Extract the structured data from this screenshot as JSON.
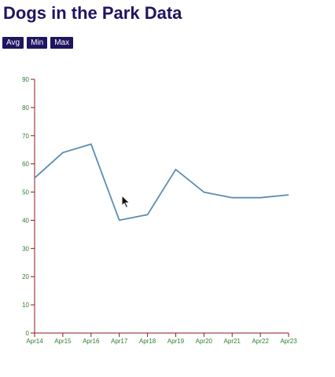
{
  "header": {
    "title": "Dogs in the Park Data"
  },
  "controls": {
    "avg_label": "Avg",
    "min_label": "Min",
    "max_label": "Max"
  },
  "colors": {
    "title": "#1f1560",
    "button_bg": "#1f1560",
    "line": "#5b8db5",
    "axis": "#8b1a1a",
    "tick_text": "#2e7d32"
  },
  "chart_data": {
    "type": "line",
    "title": "",
    "xlabel": "",
    "ylabel": "",
    "categories": [
      "Apr14",
      "Apr15",
      "Apr16",
      "Apr17",
      "Apr18",
      "Apr19",
      "Apr20",
      "Apr21",
      "Apr22",
      "Apr23"
    ],
    "series": [
      {
        "values": [
          55,
          64,
          67,
          40,
          42,
          58,
          50,
          48,
          48,
          49
        ]
      }
    ],
    "ylim": [
      0,
      90
    ],
    "yticks": [
      0,
      10,
      20,
      30,
      40,
      50,
      60,
      70,
      80,
      90
    ],
    "grid": false
  }
}
